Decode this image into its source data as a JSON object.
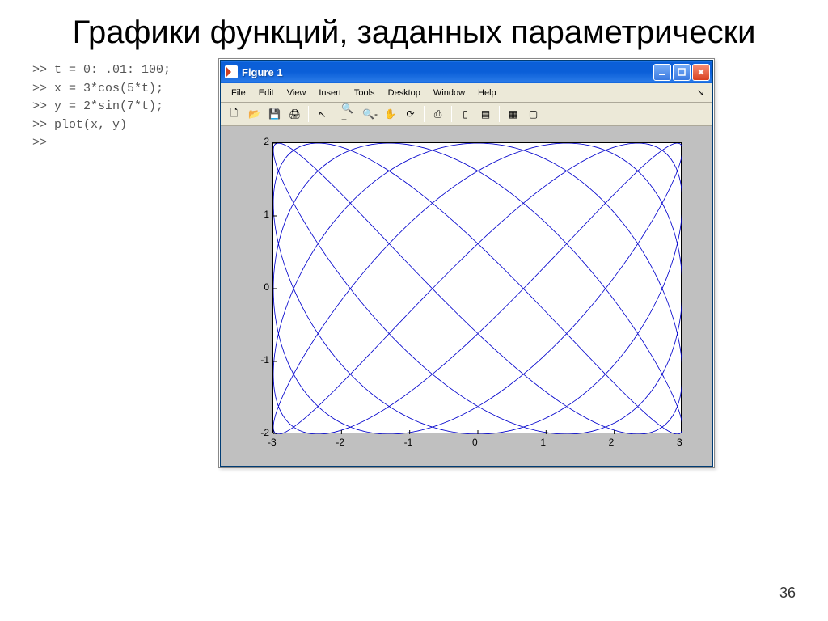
{
  "slide": {
    "title": "Графики функций, заданных параметрически",
    "page_number": "36"
  },
  "code": {
    "lines": [
      ">> t = 0: .01: 100;",
      ">> x = 3*cos(5*t);",
      ">> y = 2*sin(7*t);",
      ">> plot(x, y)",
      ">>"
    ]
  },
  "window": {
    "title": "Figure 1",
    "min_tooltip": "Minimize",
    "max_tooltip": "Maximize",
    "close_tooltip": "Close",
    "menu": [
      "File",
      "Edit",
      "View",
      "Insert",
      "Tools",
      "Desktop",
      "Window",
      "Help"
    ],
    "toolbar_icons": [
      {
        "name": "new-file-icon",
        "glyph": "🗋"
      },
      {
        "name": "open-icon",
        "glyph": "📂"
      },
      {
        "name": "save-icon",
        "glyph": "💾"
      },
      {
        "name": "print-icon",
        "glyph": "🖨"
      },
      {
        "name": "sep"
      },
      {
        "name": "pointer-icon",
        "glyph": "↖"
      },
      {
        "name": "sep"
      },
      {
        "name": "zoom-in-icon",
        "glyph": "🔍+"
      },
      {
        "name": "zoom-out-icon",
        "glyph": "🔍-"
      },
      {
        "name": "pan-icon",
        "glyph": "✋"
      },
      {
        "name": "rotate-icon",
        "glyph": "⟳"
      },
      {
        "name": "sep"
      },
      {
        "name": "data-cursor-icon",
        "glyph": "⎙"
      },
      {
        "name": "sep"
      },
      {
        "name": "colorbar-icon",
        "glyph": "▯"
      },
      {
        "name": "legend-icon",
        "glyph": "▤"
      },
      {
        "name": "sep"
      },
      {
        "name": "hide-plot-tools-icon",
        "glyph": "▦"
      },
      {
        "name": "show-plot-tools-icon",
        "glyph": "▢"
      }
    ]
  },
  "chart": {
    "type": "line",
    "parametric": {
      "x_expr": "3*cos(5*t)",
      "y_expr": "2*sin(7*t)",
      "t_start": 0,
      "t_end": 100,
      "t_step": 0.01
    },
    "line_color": "#0000cc",
    "line_width": 0.8,
    "background_color": "#ffffff",
    "figure_background": "#c0c0c0",
    "axis_color": "#000000",
    "xlim": [
      -3,
      3
    ],
    "ylim": [
      -2,
      2
    ],
    "xticks": [
      -3,
      -2,
      -1,
      0,
      1,
      2,
      3
    ],
    "yticks": [
      -2,
      -1,
      0,
      1,
      2
    ],
    "tick_fontsize": 12,
    "tick_length": 5
  }
}
